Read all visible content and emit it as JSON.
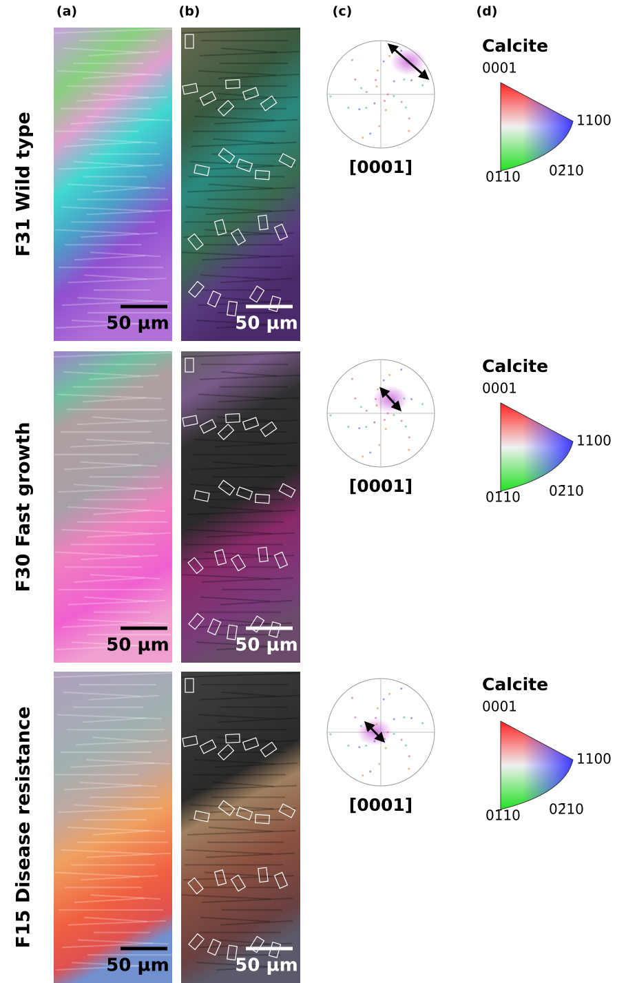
{
  "panel_labels": [
    "(a)",
    "(b)",
    "(c)",
    "(d)"
  ],
  "rows": [
    {
      "label": "F31 Wild type",
      "scale_bar_a": "50 µm",
      "scale_bar_b": "50 µm",
      "pole_figure_label": "[0001]",
      "key": {
        "title": "Calcite",
        "top": "0001",
        "right": "1100",
        "bottom_left": "01̄10",
        "bottom_right": "02̄10"
      }
    },
    {
      "label": "F30 Fast growth",
      "scale_bar_a": "50 µm",
      "scale_bar_b": "50 µm",
      "pole_figure_label": "[0001]",
      "key": {
        "title": "Calcite",
        "top": "0001",
        "right": "1100",
        "bottom_left": "01̄10",
        "bottom_right": "02̄10"
      }
    },
    {
      "label": "F15 Disease resistance",
      "scale_bar_a": "50 µm",
      "scale_bar_b": "50 µm",
      "pole_figure_label": "[0001]",
      "key": {
        "title": "Calcite",
        "top": "0001",
        "right": "1100",
        "bottom_left": "01̄10",
        "bottom_right": "02̄10"
      }
    }
  ]
}
